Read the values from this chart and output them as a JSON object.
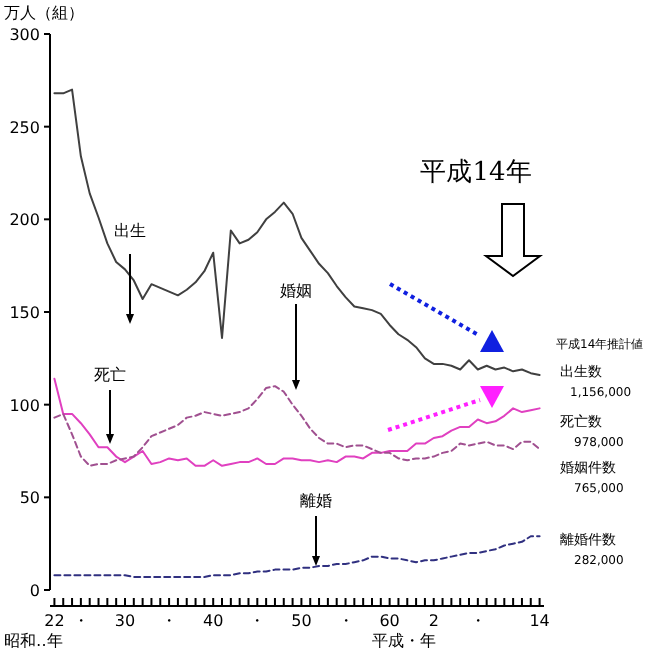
{
  "chart_data": {
    "type": "line",
    "ylabel": "万人（組）",
    "xlabel": "昭和‥年",
    "ylim": [
      0,
      300
    ],
    "yticks": [
      0,
      50,
      100,
      150,
      200,
      250,
      300
    ],
    "categories": [
      "22",
      null,
      null,
      "・",
      null,
      null,
      null,
      null,
      "30",
      null,
      null,
      null,
      null,
      "・",
      null,
      null,
      null,
      null,
      "40",
      null,
      null,
      null,
      null,
      "・",
      null,
      null,
      null,
      null,
      "50",
      null,
      null,
      null,
      null,
      "・",
      null,
      null,
      null,
      null,
      "60",
      null,
      null,
      null,
      null,
      "2",
      null,
      null,
      null,
      null,
      "・",
      null,
      null,
      null,
      null,
      null,
      null,
      "14"
    ],
    "series": [
      {
        "name": "出生",
        "color": "#404040",
        "line_style": "solid",
        "values": [
          268,
          268,
          270,
          234,
          214,
          201,
          187,
          177,
          173,
          167,
          157,
          165,
          163,
          161,
          159,
          162,
          166,
          172,
          182,
          136,
          194,
          187,
          189,
          193,
          200,
          204,
          209,
          203,
          190,
          183,
          176,
          171,
          164,
          158,
          153,
          152,
          151,
          149,
          143,
          138,
          135,
          131,
          125,
          122,
          122,
          121,
          119,
          124,
          119,
          121,
          119,
          120,
          118,
          119,
          117,
          116
        ]
      },
      {
        "name": "死亡",
        "color": "#e040c0",
        "line_style": "solid",
        "values": [
          114,
          95,
          95,
          90,
          84,
          77,
          77,
          72,
          69,
          72,
          75,
          68,
          69,
          71,
          70,
          71,
          67,
          67,
          70,
          67,
          68,
          69,
          69,
          71,
          68,
          68,
          71,
          71,
          70,
          70,
          69,
          70,
          69,
          72,
          72,
          71,
          74,
          74,
          75,
          75,
          75,
          79,
          79,
          82,
          83,
          86,
          88,
          88,
          92,
          90,
          91,
          94,
          98,
          96,
          97,
          98
        ]
      },
      {
        "name": "婚姻",
        "color": "#a05090",
        "line_style": "dashed",
        "values": [
          93,
          95,
          84,
          72,
          67,
          68,
          68,
          70,
          71,
          72,
          77,
          83,
          85,
          87,
          89,
          93,
          94,
          96,
          95,
          94,
          95,
          96,
          98,
          103,
          109,
          110,
          107,
          100,
          94,
          87,
          82,
          79,
          79,
          77,
          78,
          78,
          76,
          74,
          74,
          71,
          70,
          71,
          71,
          72,
          74,
          75,
          79,
          78,
          79,
          80,
          78,
          78,
          76,
          80,
          80,
          76
        ]
      },
      {
        "name": "離婚",
        "color": "#303080",
        "line_style": "dashed",
        "values": [
          8,
          8,
          8,
          8,
          8,
          8,
          8,
          8,
          8,
          7,
          7,
          7,
          7,
          7,
          7,
          7,
          7,
          7,
          8,
          8,
          8,
          9,
          9,
          10,
          10,
          11,
          11,
          11,
          12,
          12,
          13,
          13,
          14,
          14,
          15,
          16,
          18,
          18,
          17,
          17,
          16,
          15,
          16,
          16,
          17,
          18,
          19,
          20,
          20,
          21,
          22,
          24,
          25,
          26,
          29,
          29
        ]
      }
    ],
    "annotations": [
      "平成14年",
      "平成14年推計値",
      "出生数",
      "1,156,000",
      "死亡数",
      "978,000",
      "婚姻件数",
      "765,000",
      "離婚件数",
      "282,000",
      "平成・年"
    ]
  }
}
